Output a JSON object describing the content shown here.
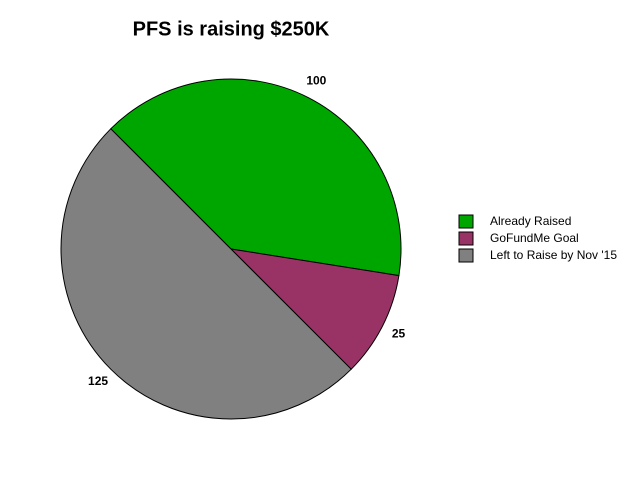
{
  "chart_data": {
    "type": "pie",
    "title": "PFS is raising $250K",
    "categories": [
      "Already Raised",
      "GoFundMe Goal",
      "Left to Raise by Nov '15"
    ],
    "values": [
      100,
      25,
      125
    ],
    "colors": [
      "#00a600",
      "#993366",
      "#808080"
    ]
  }
}
